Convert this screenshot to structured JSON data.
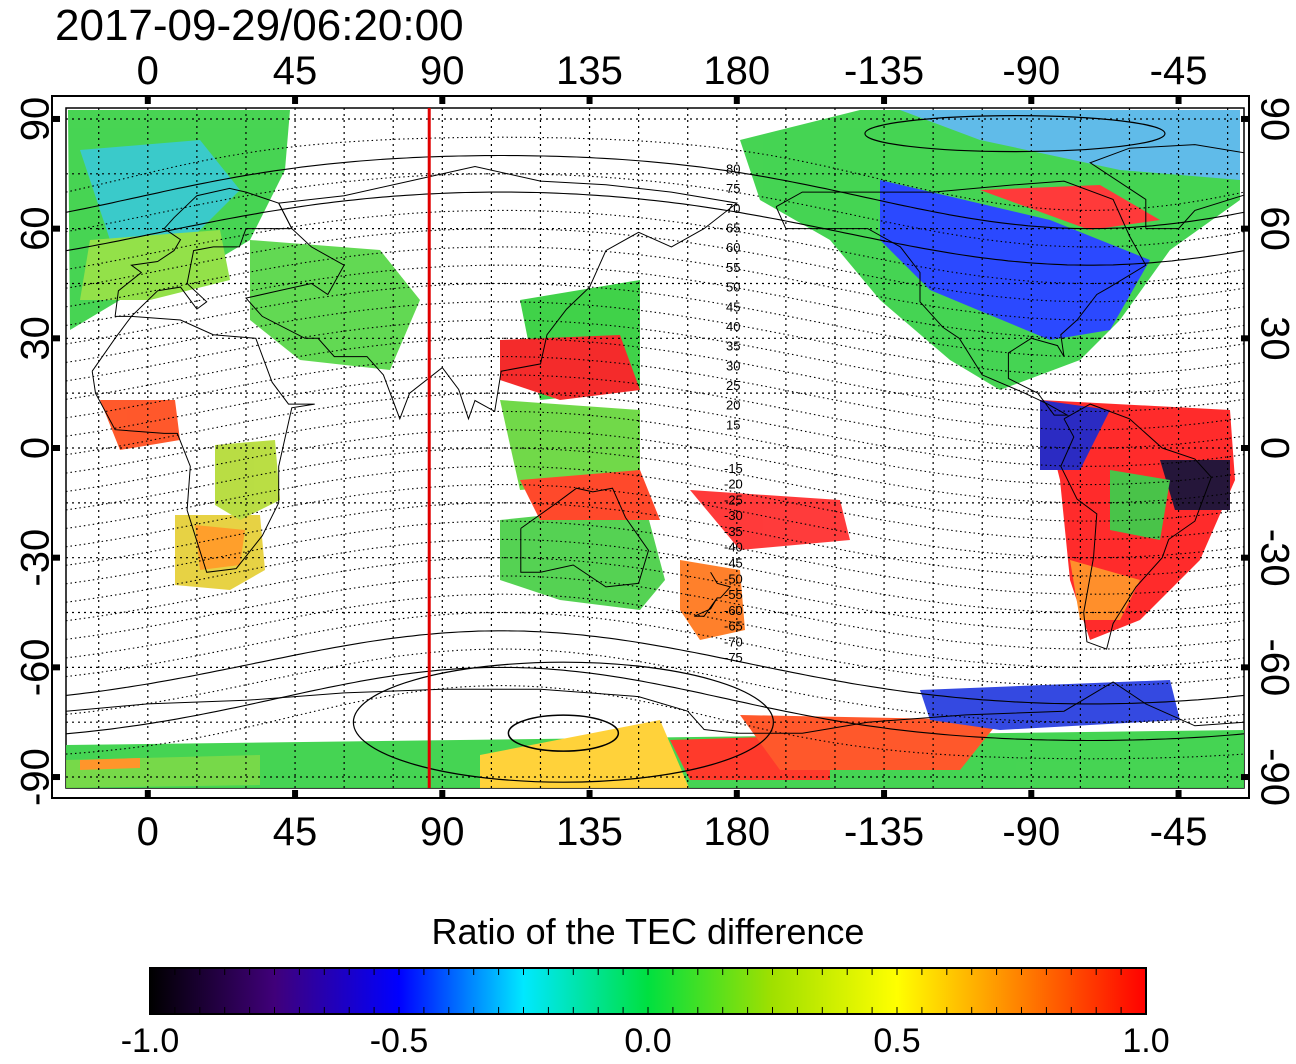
{
  "timestamp": "2017-09-29/06:20:00",
  "map": {
    "top_lon_labels": [
      "0",
      "45",
      "90",
      "135",
      "180",
      "-135",
      "-90",
      "-45"
    ],
    "bottom_lon_labels": [
      "0",
      "45",
      "90",
      "135",
      "180",
      "-135",
      "-90",
      "-45"
    ],
    "left_lat_labels": [
      "90",
      "60",
      "30",
      "0",
      "-30",
      "-60",
      "-90"
    ],
    "right_lat_labels": [
      "90",
      "60",
      "30",
      "0",
      "-30",
      "-60",
      "-90"
    ],
    "lon_ticks": [
      0,
      45,
      90,
      135,
      180,
      225,
      270,
      315
    ],
    "lat_ticks": [
      90,
      60,
      30,
      0,
      -30,
      -60,
      -90
    ],
    "lon_range": [
      -25,
      335
    ],
    "lat_range": [
      -93,
      93
    ],
    "highlight_meridian_lon": 86,
    "contour_labels": {
      "north": [
        "80",
        "75",
        "70",
        "65",
        "60",
        "55",
        "50",
        "45",
        "40",
        "35",
        "30",
        "25",
        "20",
        "15"
      ],
      "south": [
        "-15",
        "-20",
        "-25",
        "-30",
        "-35",
        "-40",
        "-45",
        "-50",
        "-55",
        "-60",
        "-65",
        "-70",
        "-75"
      ]
    },
    "colors": {
      "meridian": "#e00000",
      "grid": "#000000"
    }
  },
  "colorbar": {
    "title": "Ratio of the TEC difference",
    "tick_labels": [
      "-1.0",
      "-0.5",
      "0.0",
      "0.5",
      "1.0"
    ],
    "range": [
      -1.0,
      1.0
    ],
    "stops": [
      "#000000",
      "#40007a",
      "#0000ff",
      "#00e8ff",
      "#00e040",
      "#a0e000",
      "#ffff00",
      "#ff8000",
      "#ff0000"
    ]
  }
}
